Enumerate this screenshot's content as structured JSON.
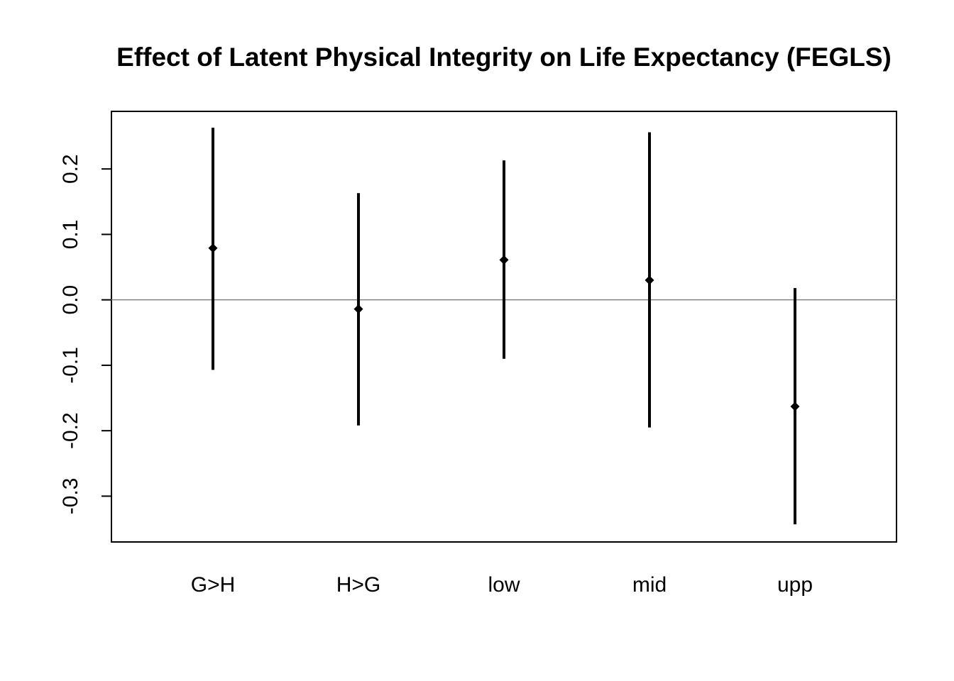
{
  "chart_data": {
    "type": "errorbar",
    "title": "Effect of Latent Physical Integrity on Life Expectancy (FEGLS)",
    "xlabel": "",
    "ylabel": "",
    "categories": [
      "G>H",
      "H>G",
      "low",
      "mid",
      "upp"
    ],
    "estimates": [
      0.079,
      -0.014,
      0.061,
      0.03,
      -0.163
    ],
    "lower": [
      -0.107,
      -0.192,
      -0.09,
      -0.195,
      -0.343
    ],
    "upper": [
      0.263,
      0.163,
      0.213,
      0.256,
      0.018
    ],
    "yticks": [
      -0.3,
      -0.2,
      -0.1,
      0.0,
      0.1,
      0.2
    ],
    "ytick_labels": [
      "-0.3",
      "-0.2",
      "-0.1",
      "0.0",
      "0.1",
      "0.2"
    ],
    "ylim": [
      -0.37,
      0.288
    ],
    "reference_line": 0.0,
    "grid": false,
    "legend": "none",
    "colors": {
      "marks": "#000000",
      "reference_line": "#808080",
      "frame": "#000000"
    }
  }
}
